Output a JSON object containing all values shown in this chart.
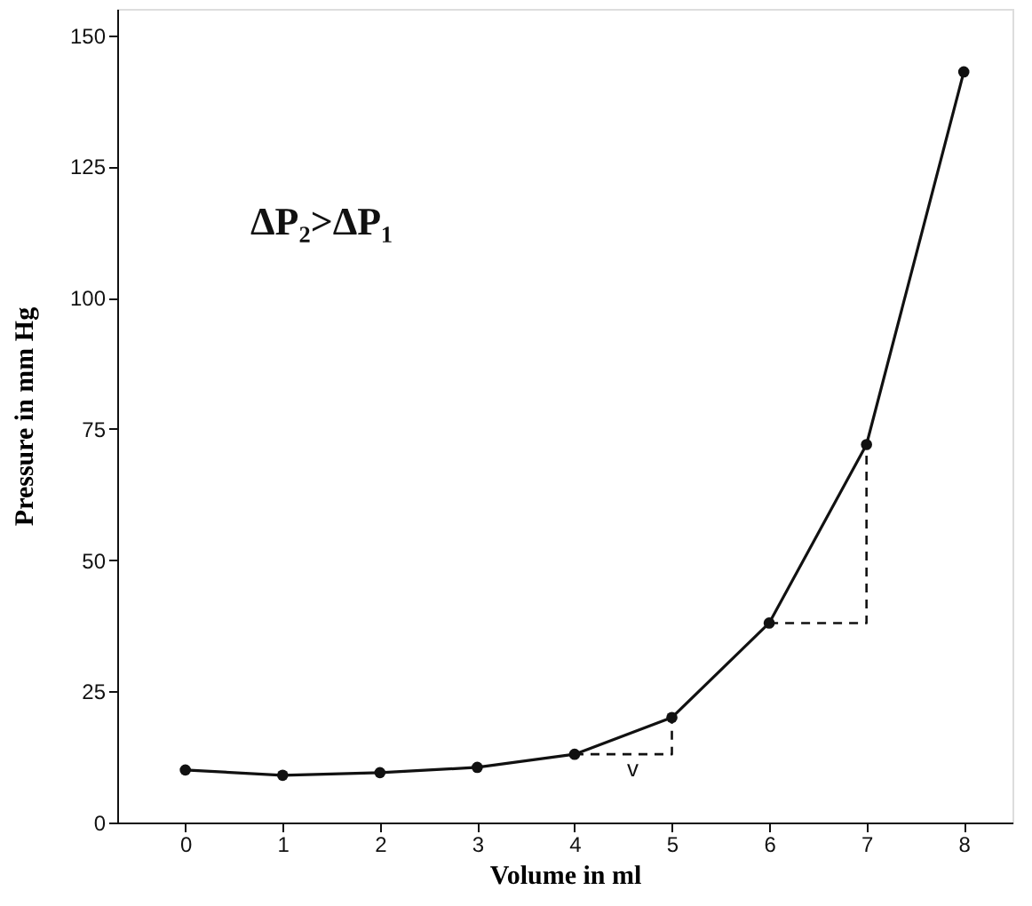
{
  "chart_data": {
    "type": "line",
    "xlabel": "Volume in ml",
    "ylabel": "Pressure in mm Hg",
    "x": [
      0,
      1,
      2,
      3,
      4,
      5,
      6,
      7,
      8
    ],
    "series": [
      {
        "color": "#111111",
        "values": [
          10,
          9,
          9.5,
          10.5,
          13,
          20,
          38,
          72,
          143
        ],
        "marker": "circle",
        "line_style": "solid"
      },
      {
        "color": "#111111",
        "x": [
          4,
          5,
          5
        ],
        "values": [
          13,
          13,
          20
        ],
        "marker": "none",
        "line_style": "dashed"
      },
      {
        "color": "#111111",
        "x": [
          6,
          7,
          7
        ],
        "values": [
          38,
          38,
          72
        ],
        "marker": "none",
        "line_style": "dashed"
      }
    ],
    "annotations": [
      "ΔP₂>ΔP₁",
      "v"
    ],
    "xlim": [
      -0.7,
      8.5
    ],
    "xticks": [
      0,
      1,
      2,
      3,
      4,
      5,
      6,
      7,
      8
    ],
    "ylim": [
      0,
      155
    ],
    "yticks": [
      0,
      25,
      50,
      75,
      100,
      125,
      150
    ],
    "grid": false
  }
}
